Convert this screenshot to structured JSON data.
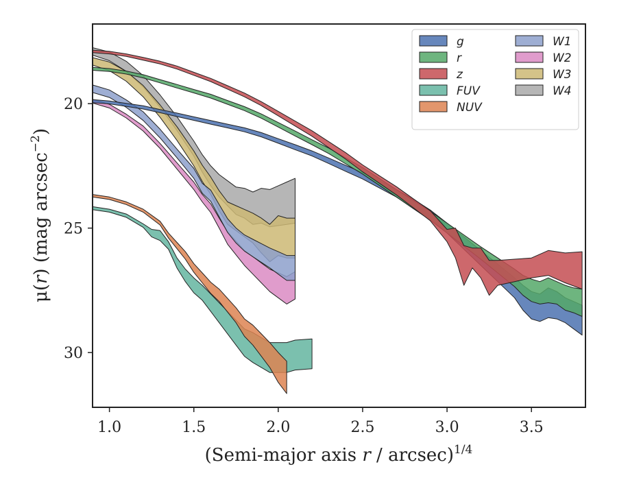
{
  "chart_data": {
    "type": "area",
    "xlabel": "(Semi-major axis r / arcsec)",
    "xlabel_prefix": "(Semi-major axis ",
    "xlabel_var": "r",
    "xlabel_suffix": " / arcsec)",
    "xlabel_exp": "1/4",
    "ylabel_prefix": "μ(",
    "ylabel_var": "r",
    "ylabel_mid": ") (mag arcsec",
    "ylabel_exp": "−2",
    "ylabel_end": ")",
    "xlim": [
      0.9,
      3.82
    ],
    "ylim": [
      32.2,
      16.8
    ],
    "y_inverted": true,
    "x_ticks": [
      1.0,
      1.5,
      2.0,
      2.5,
      3.0,
      3.5
    ],
    "x_tick_labels": [
      "1.0",
      "1.5",
      "2.0",
      "2.5",
      "3.0",
      "3.5"
    ],
    "y_ticks": [
      20,
      25,
      30
    ],
    "y_tick_labels": [
      "20",
      "25",
      "30"
    ],
    "legend_position": "top-right",
    "legend_columns": 2,
    "series": [
      {
        "name": "g",
        "color": "#4c72b0",
        "x": [
          0.9,
          1.0,
          1.1,
          1.2,
          1.3,
          1.4,
          1.5,
          1.6,
          1.7,
          1.8,
          1.9,
          2.0,
          2.1,
          2.2,
          2.3,
          2.4,
          2.5,
          2.6,
          2.7,
          2.8,
          2.9,
          3.0,
          3.1,
          3.2,
          3.3,
          3.4,
          3.45,
          3.5,
          3.55,
          3.6,
          3.65,
          3.7,
          3.75,
          3.8
        ],
        "y": [
          19.9,
          19.95,
          20.05,
          20.15,
          20.3,
          20.45,
          20.6,
          20.75,
          20.9,
          21.05,
          21.25,
          21.5,
          21.75,
          22.0,
          22.3,
          22.6,
          22.9,
          23.25,
          23.6,
          24.0,
          24.45,
          25.0,
          25.6,
          26.2,
          26.8,
          27.4,
          27.8,
          28.1,
          28.2,
          28.0,
          28.1,
          28.3,
          28.5,
          28.7
        ],
        "w": [
          0.12,
          0.12,
          0.12,
          0.13,
          0.13,
          0.14,
          0.14,
          0.15,
          0.15,
          0.16,
          0.17,
          0.18,
          0.2,
          0.2,
          0.22,
          0.24,
          0.26,
          0.28,
          0.3,
          0.33,
          0.36,
          0.4,
          0.5,
          0.6,
          0.7,
          0.8,
          1.0,
          1.1,
          1.1,
          1.2,
          1.1,
          1.0,
          1.1,
          1.2
        ]
      },
      {
        "name": "r",
        "color": "#55a868",
        "x": [
          0.9,
          1.0,
          1.1,
          1.2,
          1.3,
          1.4,
          1.5,
          1.6,
          1.7,
          1.8,
          1.9,
          2.0,
          2.1,
          2.2,
          2.3,
          2.4,
          2.5,
          2.6,
          2.7,
          2.8,
          2.9,
          3.0,
          3.1,
          3.2,
          3.3,
          3.4,
          3.45,
          3.5,
          3.55,
          3.6,
          3.65,
          3.7,
          3.75,
          3.8
        ],
        "y": [
          18.6,
          18.65,
          18.75,
          18.9,
          19.1,
          19.3,
          19.5,
          19.7,
          19.95,
          20.2,
          20.5,
          20.85,
          21.2,
          21.55,
          21.9,
          22.3,
          22.7,
          23.15,
          23.6,
          24.05,
          24.5,
          25.0,
          25.5,
          26.0,
          26.5,
          27.0,
          27.3,
          27.5,
          27.6,
          27.5,
          27.6,
          27.8,
          27.9,
          28.0
        ],
        "w": [
          0.12,
          0.12,
          0.12,
          0.13,
          0.13,
          0.14,
          0.14,
          0.15,
          0.15,
          0.16,
          0.17,
          0.18,
          0.2,
          0.2,
          0.22,
          0.24,
          0.26,
          0.28,
          0.3,
          0.33,
          0.36,
          0.4,
          0.45,
          0.5,
          0.6,
          0.7,
          0.8,
          0.9,
          0.9,
          1.0,
          0.9,
          1.0,
          1.0,
          1.1
        ]
      },
      {
        "name": "z",
        "color": "#c44e52",
        "x": [
          0.9,
          1.0,
          1.1,
          1.2,
          1.3,
          1.4,
          1.5,
          1.6,
          1.7,
          1.8,
          1.9,
          2.0,
          2.1,
          2.2,
          2.3,
          2.4,
          2.5,
          2.6,
          2.7,
          2.8,
          2.9,
          3.0,
          3.05,
          3.1,
          3.15,
          3.2,
          3.25,
          3.3,
          3.4,
          3.5,
          3.6,
          3.7,
          3.8
        ],
        "y": [
          17.9,
          17.95,
          18.05,
          18.2,
          18.35,
          18.55,
          18.8,
          19.05,
          19.35,
          19.65,
          20.0,
          20.4,
          20.8,
          21.2,
          21.65,
          22.1,
          22.6,
          23.05,
          23.5,
          24.0,
          24.5,
          25.3,
          25.6,
          26.5,
          26.2,
          26.4,
          27.0,
          26.8,
          26.7,
          26.6,
          26.4,
          26.6,
          26.7
        ],
        "w": [
          0.1,
          0.1,
          0.1,
          0.11,
          0.11,
          0.12,
          0.12,
          0.13,
          0.14,
          0.15,
          0.16,
          0.18,
          0.2,
          0.22,
          0.24,
          0.26,
          0.28,
          0.3,
          0.33,
          0.36,
          0.4,
          0.5,
          1.2,
          1.6,
          0.8,
          1.2,
          1.4,
          1.0,
          0.9,
          0.8,
          1.0,
          1.2,
          1.5
        ]
      },
      {
        "name": "FUV",
        "color": "#64b5a0",
        "x": [
          0.9,
          1.0,
          1.1,
          1.2,
          1.25,
          1.3,
          1.35,
          1.4,
          1.45,
          1.5,
          1.55,
          1.6,
          1.65,
          1.7,
          1.75,
          1.8,
          1.85,
          1.9,
          1.95,
          2.0,
          2.05,
          2.1,
          2.2
        ],
        "y": [
          24.2,
          24.3,
          24.5,
          24.9,
          25.2,
          25.3,
          25.7,
          26.4,
          26.9,
          27.3,
          27.6,
          28.0,
          28.4,
          28.8,
          29.2,
          29.6,
          29.8,
          30.0,
          30.2,
          30.2,
          30.2,
          30.1,
          30.05
        ],
        "w": [
          0.12,
          0.12,
          0.13,
          0.14,
          0.3,
          0.4,
          0.3,
          0.4,
          0.5,
          0.6,
          0.6,
          0.7,
          0.8,
          0.9,
          1.0,
          1.1,
          1.2,
          1.2,
          1.2,
          1.2,
          1.2,
          1.2,
          1.2
        ]
      },
      {
        "name": "NUV",
        "color": "#dd8452",
        "x": [
          0.9,
          1.0,
          1.1,
          1.2,
          1.3,
          1.35,
          1.4,
          1.45,
          1.5,
          1.55,
          1.6,
          1.65,
          1.7,
          1.75,
          1.8,
          1.85,
          1.9,
          1.95,
          2.0,
          2.05
        ],
        "y": [
          23.7,
          23.8,
          24.0,
          24.3,
          24.8,
          25.3,
          25.7,
          26.1,
          26.6,
          27.0,
          27.4,
          27.7,
          28.1,
          28.5,
          29.0,
          29.3,
          29.7,
          30.1,
          30.6,
          31.0
        ],
        "w": [
          0.1,
          0.1,
          0.11,
          0.12,
          0.15,
          0.2,
          0.25,
          0.3,
          0.35,
          0.4,
          0.45,
          0.5,
          0.55,
          0.6,
          0.7,
          0.8,
          0.9,
          1.0,
          1.2,
          1.3
        ]
      },
      {
        "name": "W1",
        "color": "#8da0cb",
        "x": [
          0.9,
          1.0,
          1.1,
          1.2,
          1.3,
          1.4,
          1.5,
          1.55,
          1.6,
          1.65,
          1.7,
          1.75,
          1.8,
          1.85,
          1.9,
          1.95,
          2.0,
          2.05,
          2.1
        ],
        "y": [
          19.4,
          19.6,
          20.0,
          20.5,
          21.2,
          22.0,
          22.8,
          23.4,
          23.7,
          24.3,
          24.9,
          25.3,
          25.6,
          25.8,
          26.0,
          26.2,
          26.4,
          26.6,
          26.6
        ],
        "w": [
          0.3,
          0.3,
          0.3,
          0.35,
          0.35,
          0.35,
          0.4,
          0.4,
          0.45,
          0.5,
          0.55,
          0.6,
          0.65,
          0.7,
          0.75,
          0.8,
          0.9,
          1.0,
          1.0
        ]
      },
      {
        "name": "W2",
        "color": "#da8bc3",
        "x": [
          0.9,
          1.0,
          1.1,
          1.2,
          1.3,
          1.4,
          1.5,
          1.55,
          1.6,
          1.65,
          1.7,
          1.75,
          1.8,
          1.85,
          1.9,
          1.95,
          2.0,
          2.05,
          2.1
        ],
        "y": [
          19.9,
          20.1,
          20.5,
          21.0,
          21.7,
          22.5,
          23.3,
          23.8,
          24.2,
          24.8,
          25.4,
          25.8,
          26.2,
          26.5,
          26.8,
          27.1,
          27.3,
          27.5,
          27.3
        ],
        "w": [
          0.15,
          0.15,
          0.15,
          0.2,
          0.2,
          0.25,
          0.3,
          0.3,
          0.35,
          0.4,
          0.5,
          0.55,
          0.6,
          0.7,
          0.8,
          0.9,
          1.0,
          1.1,
          1.1
        ]
      },
      {
        "name": "W3",
        "color": "#ccb974",
        "x": [
          0.9,
          1.0,
          1.1,
          1.2,
          1.3,
          1.4,
          1.5,
          1.55,
          1.6,
          1.65,
          1.7,
          1.75,
          1.8,
          1.85,
          1.9,
          1.95,
          2.0,
          2.05,
          2.1
        ],
        "y": [
          18.3,
          18.5,
          18.9,
          19.5,
          20.3,
          21.2,
          22.2,
          22.8,
          23.3,
          23.9,
          24.4,
          24.6,
          24.8,
          25.0,
          25.3,
          25.6,
          25.3,
          25.4,
          25.4
        ],
        "w": [
          0.3,
          0.35,
          0.4,
          0.45,
          0.5,
          0.55,
          0.6,
          0.65,
          0.7,
          0.8,
          0.9,
          1.0,
          1.1,
          1.2,
          1.4,
          1.5,
          1.6,
          1.6,
          1.6
        ]
      },
      {
        "name": "W4",
        "color": "#a9a9a9",
        "x": [
          0.9,
          1.0,
          1.1,
          1.2,
          1.3,
          1.4,
          1.5,
          1.55,
          1.6,
          1.65,
          1.7,
          1.75,
          1.8,
          1.85,
          1.9,
          1.95,
          2.0,
          2.05,
          2.1
        ],
        "y": [
          17.9,
          18.1,
          18.5,
          19.1,
          19.9,
          20.8,
          21.8,
          22.4,
          22.9,
          23.3,
          23.6,
          23.9,
          24.0,
          24.2,
          24.1,
          24.2,
          24.1,
          24.0,
          23.9
        ],
        "w": [
          0.3,
          0.35,
          0.4,
          0.45,
          0.5,
          0.55,
          0.6,
          0.7,
          0.8,
          0.9,
          1.0,
          1.1,
          1.2,
          1.3,
          1.4,
          1.5,
          1.6,
          1.7,
          1.8
        ]
      }
    ],
    "legend_order_col1": [
      "g",
      "r",
      "z",
      "FUV",
      "NUV"
    ],
    "legend_order_col2": [
      "W1",
      "W2",
      "W3",
      "W4"
    ]
  }
}
